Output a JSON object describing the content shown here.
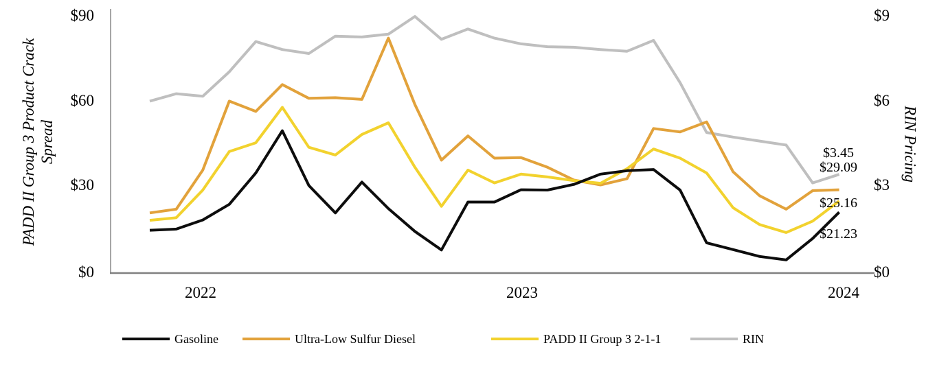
{
  "chart_data": {
    "type": "line",
    "title": "",
    "x_axis": {
      "ticks": [
        "2022",
        "2023",
        "2024"
      ],
      "tick_point_index": [
        2,
        14,
        26
      ],
      "points_per_series": 27
    },
    "left_axis": {
      "title": "PADD II Group 3 Product Crack Spread",
      "title_lines": [
        "PADD II Group 3 Product Crack",
        "Spread"
      ],
      "ticks": [
        "$90",
        "$60",
        "$30",
        "$0"
      ],
      "tick_values": [
        90,
        60,
        30,
        0
      ],
      "range": [
        0,
        90
      ]
    },
    "right_axis": {
      "title": "RIN Pricing",
      "ticks": [
        "$9",
        "$6",
        "$3",
        "$0"
      ],
      "tick_values": [
        9,
        6,
        3,
        0
      ],
      "range": [
        0,
        9
      ]
    },
    "series": [
      {
        "name": "Gasoline",
        "axis": "left",
        "color": "#0d0d0d",
        "values": [
          14.9,
          15.3,
          18.5,
          24,
          35,
          49.8,
          30.6,
          21,
          31.8,
          22.5,
          14.5,
          8,
          24.8,
          24.8,
          29.1,
          29,
          31,
          34.6,
          35.8,
          36.2,
          29,
          10.5,
          8.1,
          5.7,
          4.5,
          12,
          21.23
        ]
      },
      {
        "name": "Ultra-Low Sulfur Diesel",
        "axis": "left",
        "color": "#e2a23b",
        "values": [
          21,
          22.3,
          36,
          60.2,
          56.6,
          66,
          61.2,
          61.4,
          60.8,
          82.3,
          59,
          39.5,
          48,
          40.2,
          40.4,
          37,
          32.5,
          30.8,
          33,
          50.6,
          49.4,
          52.9,
          35.4,
          27,
          22.3,
          28.8,
          29.09
        ]
      },
      {
        "name": "PADD II Group 3 2-1-1",
        "axis": "left",
        "color": "#f2d22e",
        "values": [
          18.4,
          19.3,
          29,
          42.5,
          45.6,
          58,
          44,
          41.3,
          48.5,
          52.6,
          37,
          23.3,
          36,
          31.5,
          34.6,
          33.6,
          32.3,
          31.4,
          36.5,
          43.4,
          40.2,
          35,
          22.8,
          16.9,
          14.1,
          18.1,
          25.16
        ]
      },
      {
        "name": "RIN",
        "axis": "right",
        "color": "#bfbfbf",
        "values": [
          6.02,
          6.28,
          6.19,
          7.05,
          8.11,
          7.83,
          7.69,
          8.3,
          8.27,
          8.37,
          8.99,
          8.19,
          8.55,
          8.23,
          8.03,
          7.93,
          7.91,
          7.83,
          7.77,
          8.15,
          6.67,
          4.92,
          4.76,
          4.62,
          4.48,
          3.15,
          3.45
        ]
      }
    ],
    "end_labels": [
      {
        "text": "$3.45",
        "series": "RIN"
      },
      {
        "text": "$29.09",
        "series": "Ultra-Low Sulfur Diesel"
      },
      {
        "text": "$25.16",
        "series": "PADD II Group 3 2-1-1"
      },
      {
        "text": "$21.23",
        "series": "Gasoline"
      }
    ],
    "legend": {
      "items": [
        "Gasoline",
        "Ultra-Low Sulfur Diesel",
        "PADD II Group 3 2-1-1",
        "RIN"
      ]
    },
    "colors": {
      "left_axis_line": "#a6a6a6",
      "x_axis_line": "#808080"
    }
  }
}
